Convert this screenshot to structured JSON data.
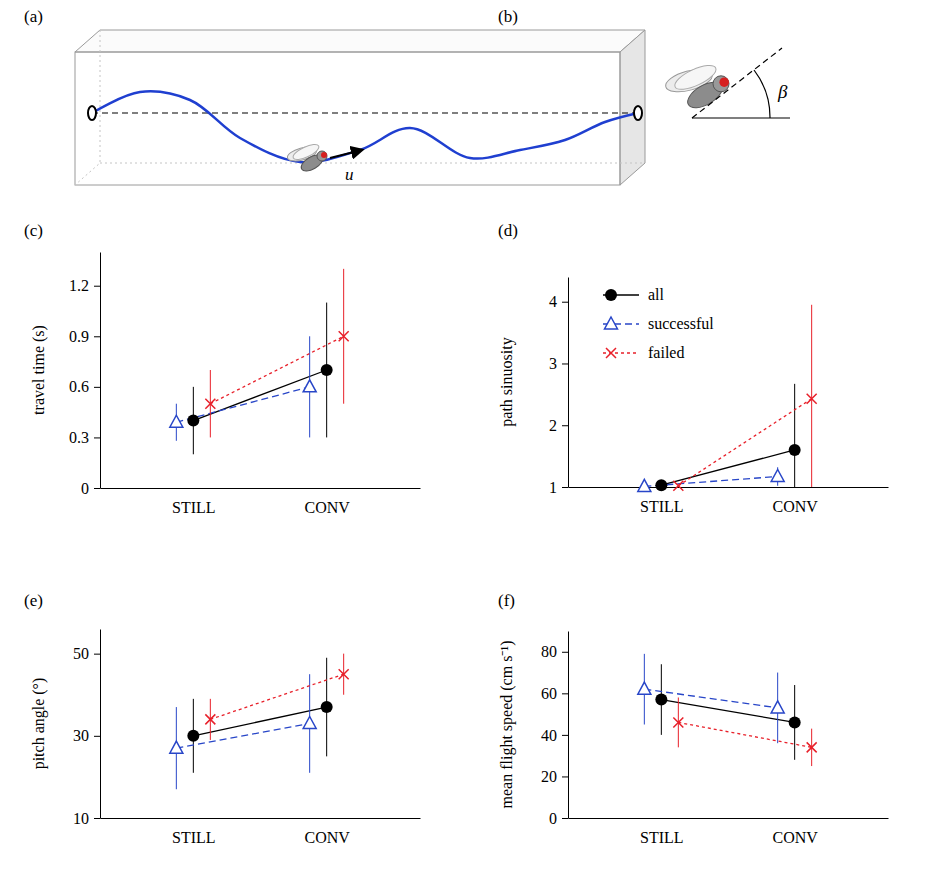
{
  "panels": {
    "a": {
      "label": "(a)",
      "velocity": "u"
    },
    "b": {
      "label": "(b)",
      "angle": "β"
    }
  },
  "chart_data": [
    {
      "type": "line",
      "panel_label": "(c)",
      "y_label": "travel time (s)",
      "categories": [
        "STILL",
        "CONV"
      ],
      "ylim": [
        0,
        1.4
      ],
      "yticks": [
        0,
        0.3,
        0.6,
        0.9,
        1.2
      ],
      "series": [
        {
          "color": "#000000",
          "marker": "circle",
          "line_style": "solid",
          "values": [
            0.4,
            0.7
          ],
          "errors": [
            0.2,
            0.4
          ]
        },
        {
          "color": "#2846c8",
          "marker": "triangle",
          "line_style": "dashed",
          "values": [
            0.39,
            0.6
          ],
          "errors": [
            0.11,
            0.3
          ]
        },
        {
          "color": "#e8202a",
          "marker": "x",
          "line_style": "dotted",
          "values": [
            0.5,
            0.9
          ],
          "errors": [
            0.2,
            0.4
          ]
        }
      ]
    },
    {
      "type": "line",
      "panel_label": "(d)",
      "y_label": "path sinuosity",
      "legend": "upper left",
      "categories": [
        "STILL",
        "CONV"
      ],
      "ylim": [
        1,
        4.4
      ],
      "yticks": [
        1,
        2,
        3,
        4
      ],
      "series": [
        {
          "name": "all",
          "color": "#000000",
          "marker": "circle",
          "line_style": "solid",
          "values": [
            1.03,
            1.6
          ],
          "errors": [
            0.03,
            1.07
          ]
        },
        {
          "name": "successful",
          "color": "#2846c8",
          "marker": "triangle",
          "line_style": "dashed",
          "values": [
            1.01,
            1.17
          ],
          "errors": [
            0.01,
            0.15
          ]
        },
        {
          "name": "failed",
          "color": "#e8202a",
          "marker": "x",
          "line_style": "dotted",
          "values": [
            1.02,
            2.43
          ],
          "errors": [
            0.02,
            1.52
          ]
        }
      ]
    },
    {
      "type": "line",
      "panel_label": "(e)",
      "y_label": "pitch angle (°)",
      "categories": [
        "STILL",
        "CONV"
      ],
      "ylim": [
        10,
        56
      ],
      "yticks": [
        10,
        30,
        50
      ],
      "series": [
        {
          "color": "#000000",
          "marker": "circle",
          "line_style": "solid",
          "values": [
            30,
            37
          ],
          "errors": [
            9,
            12
          ]
        },
        {
          "color": "#2846c8",
          "marker": "triangle",
          "line_style": "dashed",
          "values": [
            27,
            33
          ],
          "errors": [
            10,
            12
          ]
        },
        {
          "color": "#e8202a",
          "marker": "x",
          "line_style": "dotted",
          "values": [
            34,
            45
          ],
          "errors": [
            5,
            5
          ]
        }
      ]
    },
    {
      "type": "line",
      "panel_label": "(f)",
      "y_label": "mean flight speed (cm s⁻¹)",
      "categories": [
        "STILL",
        "CONV"
      ],
      "ylim": [
        0,
        90
      ],
      "yticks": [
        0,
        20,
        40,
        60,
        80
      ],
      "series": [
        {
          "color": "#000000",
          "marker": "circle",
          "line_style": "solid",
          "values": [
            57,
            46
          ],
          "errors": [
            17,
            18
          ]
        },
        {
          "color": "#2846c8",
          "marker": "triangle",
          "line_style": "dashed",
          "values": [
            62,
            53
          ],
          "errors": [
            17,
            17
          ]
        },
        {
          "color": "#e8202a",
          "marker": "x",
          "line_style": "dotted",
          "values": [
            46,
            34
          ],
          "errors": [
            12,
            9
          ]
        }
      ]
    }
  ]
}
